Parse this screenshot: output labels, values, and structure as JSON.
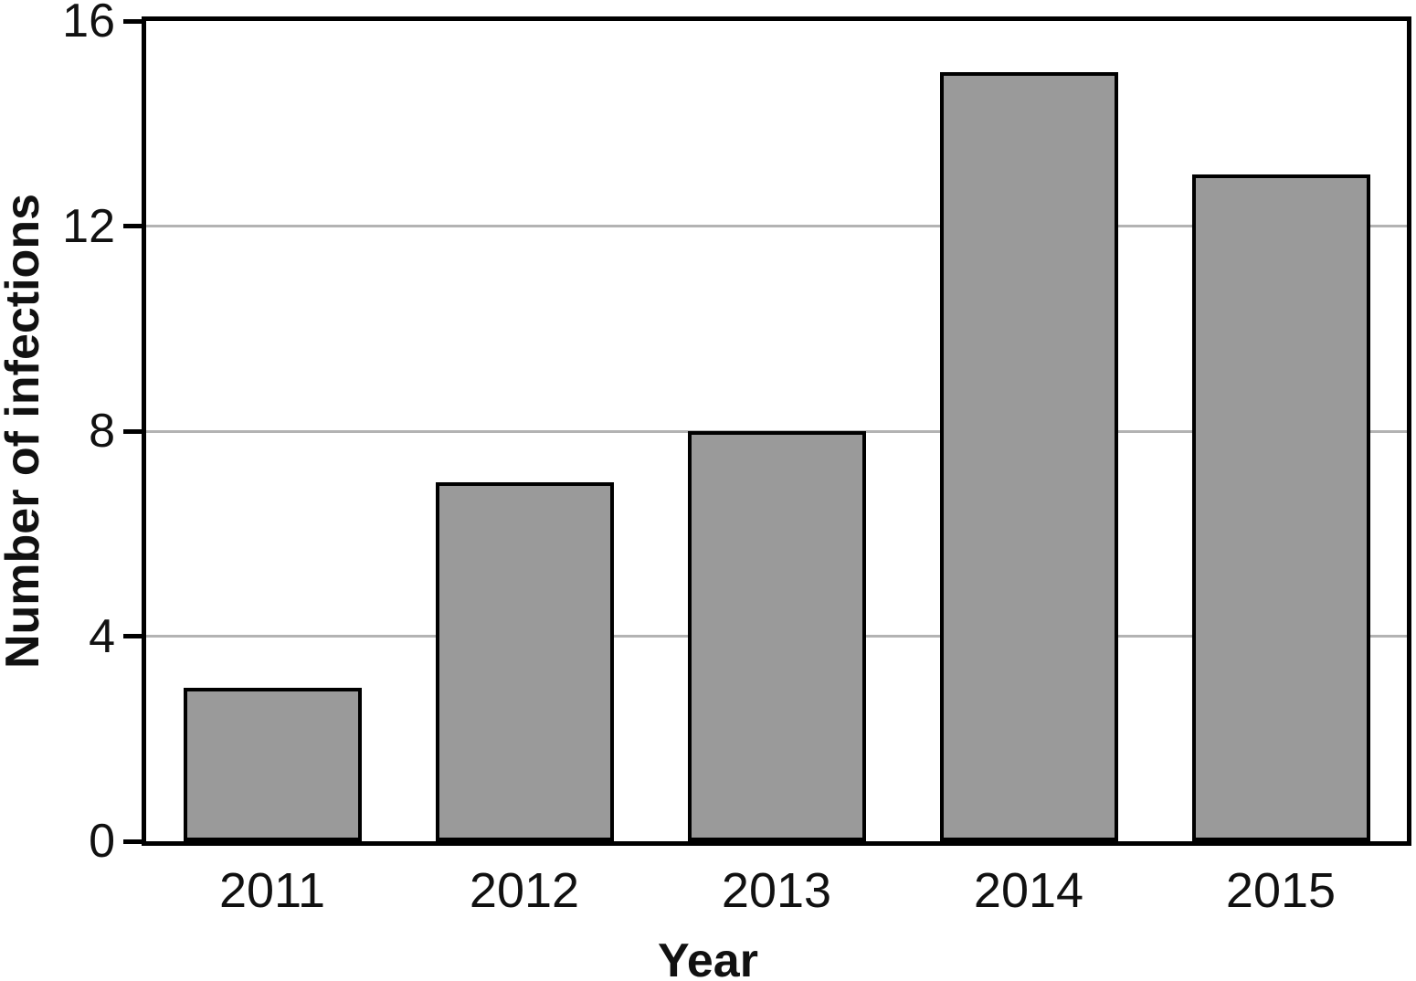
{
  "chart_data": {
    "type": "bar",
    "categories": [
      "2011",
      "2012",
      "2013",
      "2014",
      "2015"
    ],
    "values": [
      3,
      7,
      8,
      15,
      13
    ],
    "title": "",
    "xlabel": "Year",
    "ylabel": "Number of infections",
    "ylim": [
      0,
      16
    ],
    "yticks": [
      0,
      4,
      8,
      12,
      16
    ],
    "gridline_values": [
      4,
      8,
      12
    ],
    "grid": true,
    "legend_position": "none",
    "bar_fill_color": "#9a9a9a",
    "bar_border_color": "#000000",
    "gridline_color": "#b3b3b3",
    "axis_frame_color": "#000000",
    "text_color": "#111111",
    "background_color": "#ffffff"
  }
}
